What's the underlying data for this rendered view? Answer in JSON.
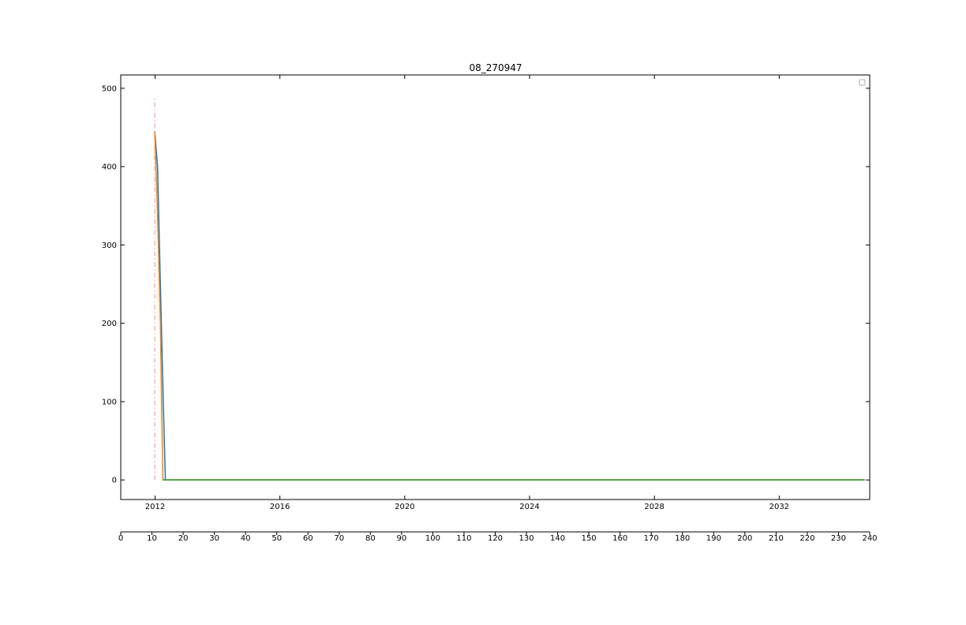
{
  "chart_data": {
    "type": "line",
    "title": "08_270947",
    "xlabel": "",
    "ylabel": "",
    "ylim": [
      -25,
      517
    ],
    "yticks": [
      0,
      100,
      200,
      300,
      400,
      500
    ],
    "date_axis": {
      "range_years": [
        2010.9,
        2034.9
      ],
      "ticks": [
        2012,
        2016,
        2020,
        2024,
        2028,
        2032
      ],
      "tick_labels": [
        "2012",
        "2016",
        "2020",
        "2024",
        "2028",
        "2032"
      ]
    },
    "index_axis": {
      "range": [
        0,
        240
      ],
      "ticks": [
        0,
        10,
        20,
        30,
        40,
        50,
        60,
        70,
        80,
        90,
        100,
        110,
        120,
        130,
        140,
        150,
        160,
        170,
        180,
        190,
        200,
        210,
        220,
        230,
        240
      ]
    },
    "series": [
      {
        "color": "#1f77b4",
        "x": [
          2011.99,
          2012.08,
          2012.17,
          2012.25,
          2012.33,
          2034.74
        ],
        "y": [
          445,
          400,
          250,
          120,
          0,
          0
        ]
      },
      {
        "color": "#ff7f0e",
        "x": [
          2011.99,
          2012.08,
          2012.17,
          2012.25,
          2034.74
        ],
        "y": [
          445,
          340,
          200,
          0,
          0
        ]
      },
      {
        "color": "#2ca02c",
        "x": [
          2012.25,
          2034.74
        ],
        "y": [
          0,
          0
        ]
      }
    ],
    "vline": {
      "x": 2011.99,
      "ymin": 0,
      "ymax": 490,
      "color": "#f4a6a6",
      "style": "dash-dot"
    },
    "legend": {
      "position": "top-right",
      "entries": []
    },
    "grid": false
  }
}
